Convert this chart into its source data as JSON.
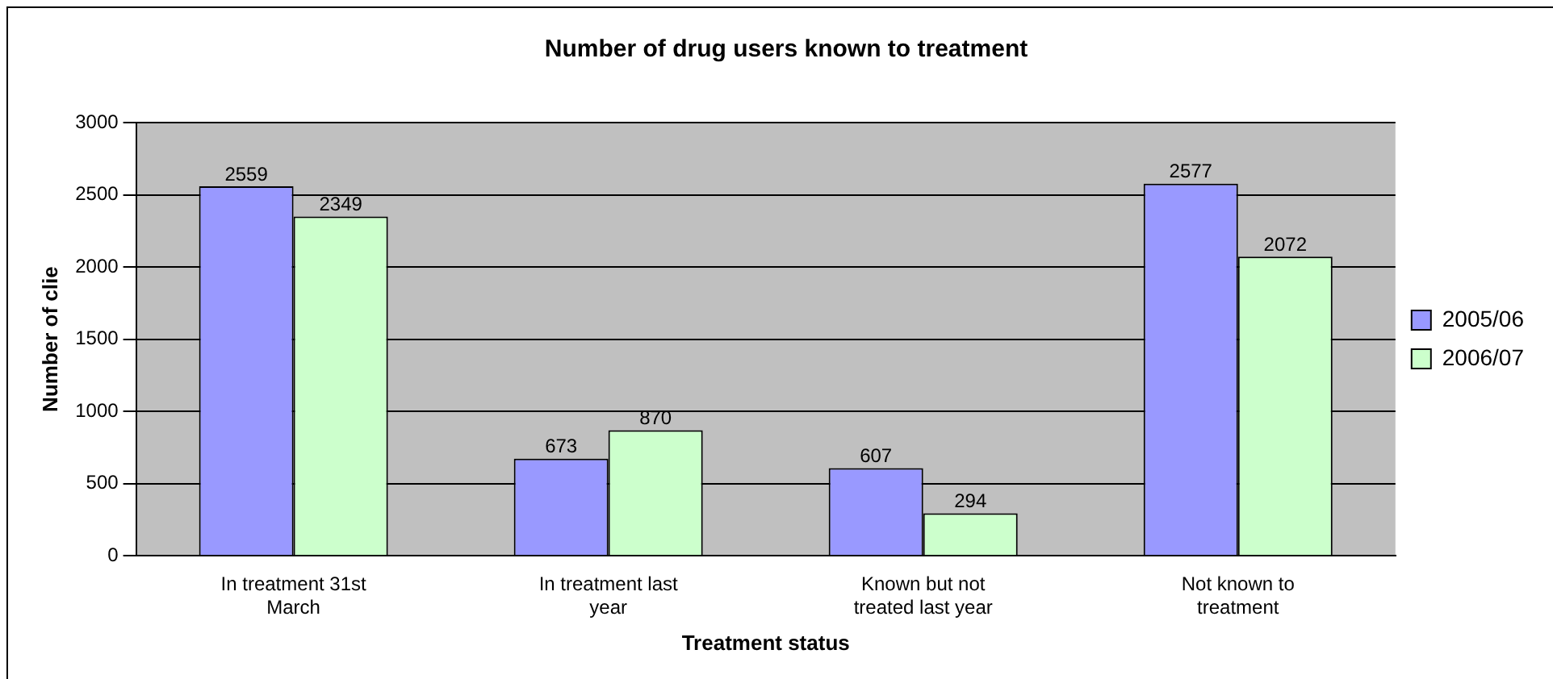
{
  "chart_data": {
    "type": "bar",
    "title": "Number of drug users known to treatment",
    "xlabel": "Treatment status",
    "ylabel": "Number of clie",
    "categories": [
      "In treatment 31st March",
      "In treatment last year",
      "Known but not treated last year",
      "Not known to treatment"
    ],
    "series": [
      {
        "name": "2005/06",
        "color": "#9999ff",
        "values": [
          2559,
          673,
          607,
          2577
        ]
      },
      {
        "name": "2006/07",
        "color": "#ccffcc",
        "values": [
          2349,
          870,
          294,
          2072
        ]
      }
    ],
    "ylim": [
      0,
      3000
    ],
    "yticks": [
      0,
      500,
      1000,
      1500,
      2000,
      2500,
      3000
    ],
    "grid": "y",
    "legend": "right",
    "data_labels": true
  }
}
